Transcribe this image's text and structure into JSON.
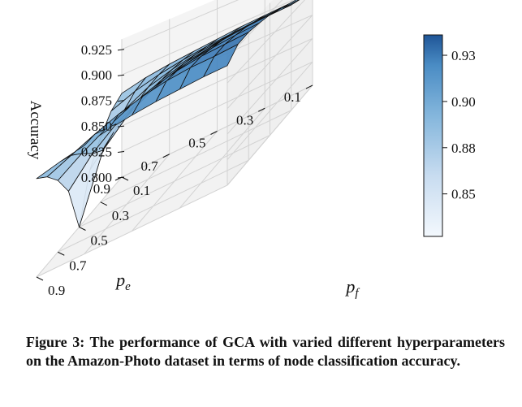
{
  "chart_data": {
    "type": "surface3d",
    "title": "",
    "zlabel": "Accuracy",
    "xlabel": "p_e",
    "ylabel": "p_f",
    "x_ticks": [
      "0.1",
      "0.3",
      "0.5",
      "0.7",
      "0.9"
    ],
    "y_ticks": [
      "0.1",
      "0.3",
      "0.5",
      "0.7",
      "0.9"
    ],
    "z_ticks": [
      "0.800",
      "0.825",
      "0.850",
      "0.875",
      "0.900",
      "0.925"
    ],
    "zlim": [
      0.8,
      0.93
    ],
    "x": [
      0.1,
      0.2,
      0.3,
      0.4,
      0.5,
      0.6,
      0.7,
      0.8,
      0.9
    ],
    "y": [
      0.1,
      0.2,
      0.3,
      0.4,
      0.5,
      0.6,
      0.7,
      0.8,
      0.9
    ],
    "z": [
      [
        0.901,
        0.905,
        0.91,
        0.918,
        0.923,
        0.926,
        0.928,
        0.927,
        0.917
      ],
      [
        0.898,
        0.903,
        0.909,
        0.916,
        0.921,
        0.924,
        0.926,
        0.925,
        0.916
      ],
      [
        0.897,
        0.902,
        0.907,
        0.913,
        0.918,
        0.921,
        0.924,
        0.924,
        0.914
      ],
      [
        0.896,
        0.9,
        0.905,
        0.909,
        0.913,
        0.917,
        0.92,
        0.921,
        0.912
      ],
      [
        0.894,
        0.898,
        0.902,
        0.905,
        0.907,
        0.91,
        0.914,
        0.916,
        0.909
      ],
      [
        0.892,
        0.895,
        0.897,
        0.898,
        0.898,
        0.901,
        0.905,
        0.909,
        0.905
      ],
      [
        0.89,
        0.891,
        0.89,
        0.887,
        0.884,
        0.888,
        0.894,
        0.9,
        0.9
      ],
      [
        0.887,
        0.885,
        0.878,
        0.868,
        0.862,
        0.87,
        0.881,
        0.89,
        0.895
      ],
      [
        0.882,
        0.876,
        0.862,
        0.842,
        0.8,
        0.845,
        0.866,
        0.88,
        0.889
      ]
    ],
    "colorbar": {
      "ticks": [
        "0.85",
        "0.88",
        "0.90",
        "0.93"
      ],
      "tick_values": [
        0.85,
        0.875,
        0.9,
        0.925
      ],
      "range": [
        0.827,
        0.936
      ],
      "colormap": "Blues",
      "color_low": "#f3f8fd",
      "color_high": "#1f5597"
    }
  },
  "caption": "Figure 3: The performance of GCA with varied different hyperparameters on the Amazon-Photo dataset in terms of node classification accuracy."
}
